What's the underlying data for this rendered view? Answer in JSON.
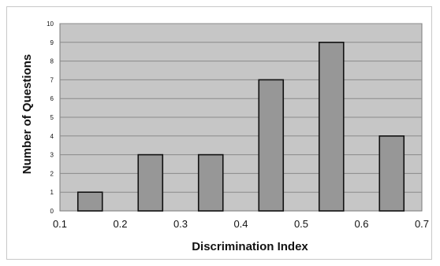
{
  "chart_data": {
    "type": "bar",
    "title": "",
    "xlabel": "Discrimination Index",
    "ylabel": "Number of Questions",
    "x_ticks": [
      "0.1",
      "0.2",
      "0.3",
      "0.4",
      "0.5",
      "0.6",
      "0.7"
    ],
    "y_ticks": [
      "0",
      "1",
      "2",
      "3",
      "4",
      "5",
      "6",
      "7",
      "8",
      "9",
      "10"
    ],
    "xlim": [
      0.1,
      0.7
    ],
    "ylim": [
      0,
      10
    ],
    "grid": true,
    "legend": "none",
    "bars": [
      {
        "x": 0.15,
        "value": 1
      },
      {
        "x": 0.25,
        "value": 3
      },
      {
        "x": 0.35,
        "value": 3
      },
      {
        "x": 0.45,
        "value": 7
      },
      {
        "x": 0.55,
        "value": 9
      },
      {
        "x": 0.65,
        "value": 4
      }
    ],
    "colors": {
      "plot_background": "#c6c6c6",
      "bar_fill": "#979797",
      "bar_stroke": "#111111",
      "grid": "#8a8a8a"
    }
  }
}
